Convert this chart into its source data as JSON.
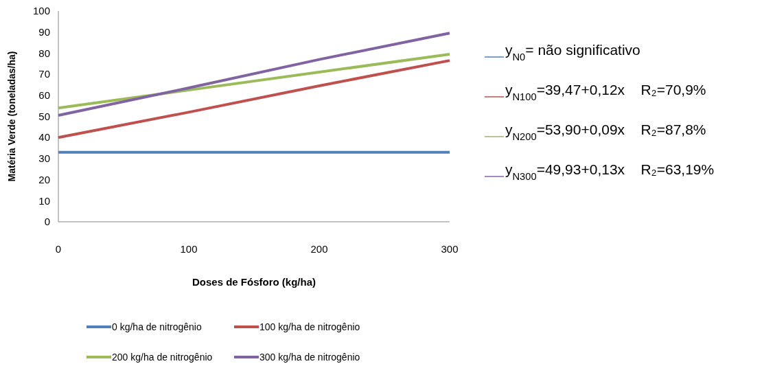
{
  "chart_data": {
    "type": "line",
    "xlabel": "Doses de Fósforo (kg/ha)",
    "ylabel": "Matéria Verde (toneladas/ha)",
    "x": [
      0,
      100,
      200,
      300
    ],
    "xlim": [
      0,
      300
    ],
    "xticks": [
      0,
      100,
      200,
      300
    ],
    "ylim": [
      0,
      100
    ],
    "yticks": [
      0,
      10,
      20,
      30,
      40,
      50,
      60,
      70,
      80,
      90,
      100
    ],
    "series": [
      {
        "name": "0 kg/ha de nitrogênio",
        "color": "#4f81bd",
        "values": [
          33,
          33,
          33,
          33
        ]
      },
      {
        "name": "100 kg/ha de nitrogênio",
        "color": "#c0504d",
        "values": [
          40,
          52,
          64.5,
          76.5
        ]
      },
      {
        "name": "200 kg/ha de nitrogênio",
        "color": "#9bbb59",
        "values": [
          54,
          62.5,
          71,
          79.5
        ]
      },
      {
        "name": "300 kg/ha de nitrogênio",
        "color": "#8064a2",
        "values": [
          50.5,
          63.5,
          77,
          89.5
        ]
      }
    ],
    "annotations": [
      "y$_{N0}$= não significativo",
      "y$_{N100}$=39,47+0,12x    R₂=70,9%",
      "y$_{N200}$=53,90+0,09x    R₂=87,8%",
      "y$_{N300}$=49,93+0,13x    R₂=63,19%"
    ],
    "legend": "bottom",
    "grid": false,
    "marker": "none",
    "line_style": "solid"
  }
}
